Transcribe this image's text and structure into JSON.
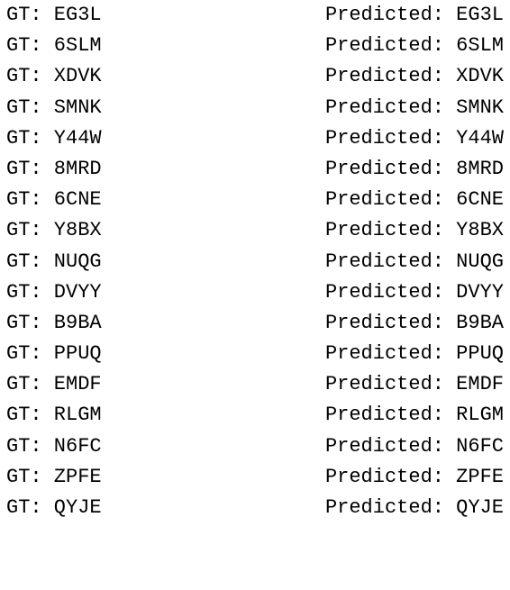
{
  "rows": [
    {
      "gt": "GT: EG3L",
      "pred": "Predicted: EG3L"
    },
    {
      "gt": "GT: 6SLM",
      "pred": "Predicted: 6SLM"
    },
    {
      "gt": "GT: XDVK",
      "pred": "Predicted: XDVK"
    },
    {
      "gt": "GT: SMNK",
      "pred": "Predicted: SMNK"
    },
    {
      "gt": "GT: Y44W",
      "pred": "Predicted: Y44W"
    },
    {
      "gt": "GT: 8MRD",
      "pred": "Predicted: 8MRD"
    },
    {
      "gt": "GT: 6CNE",
      "pred": "Predicted: 6CNE"
    },
    {
      "gt": "GT: Y8BX",
      "pred": "Predicted: Y8BX"
    },
    {
      "gt": "GT: NUQG",
      "pred": "Predicted: NUQG"
    },
    {
      "gt": "GT: DVYY",
      "pred": "Predicted: DVYY"
    },
    {
      "gt": "GT: B9BA",
      "pred": "Predicted: B9BA"
    },
    {
      "gt": "GT: PPUQ",
      "pred": "Predicted: PPUQ"
    },
    {
      "gt": "GT: EMDF",
      "pred": "Predicted: EMDF"
    },
    {
      "gt": "GT: RLGM",
      "pred": "Predicted: RLGM"
    },
    {
      "gt": "GT: N6FC",
      "pred": "Predicted: N6FC"
    },
    {
      "gt": "GT: ZPFE",
      "pred": "Predicted: ZPFE"
    },
    {
      "gt": "GT: QYJE",
      "pred": "Predicted: QYJE"
    }
  ]
}
